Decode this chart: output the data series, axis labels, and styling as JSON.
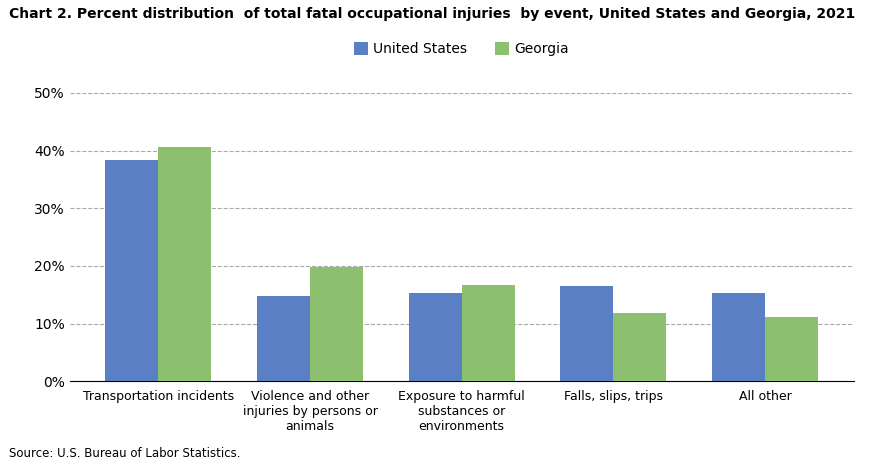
{
  "title": "Chart 2. Percent distribution  of total fatal occupational injuries  by event, United States and Georgia, 2021",
  "categories": [
    "Transportation incidents",
    "Violence and other\ninjuries by persons or\nanimals",
    "Exposure to harmful\nsubstances or\nenvironments",
    "Falls, slips, trips",
    "All other"
  ],
  "us_values": [
    38.3,
    14.8,
    15.3,
    16.5,
    15.4
  ],
  "ga_values": [
    40.7,
    19.8,
    16.7,
    11.9,
    11.2
  ],
  "us_color": "#5b7fc4",
  "ga_color": "#8cbf6e",
  "ylim": [
    0,
    50
  ],
  "yticks": [
    0,
    10,
    20,
    30,
    40,
    50
  ],
  "ytick_labels": [
    "0%",
    "10%",
    "20%",
    "30%",
    "40%",
    "50%"
  ],
  "legend_labels": [
    "United States",
    "Georgia"
  ],
  "source_text": "Source: U.S. Bureau of Labor Statistics.",
  "bar_width": 0.35,
  "grid_color": "#aaaaaa",
  "background_color": "#ffffff"
}
